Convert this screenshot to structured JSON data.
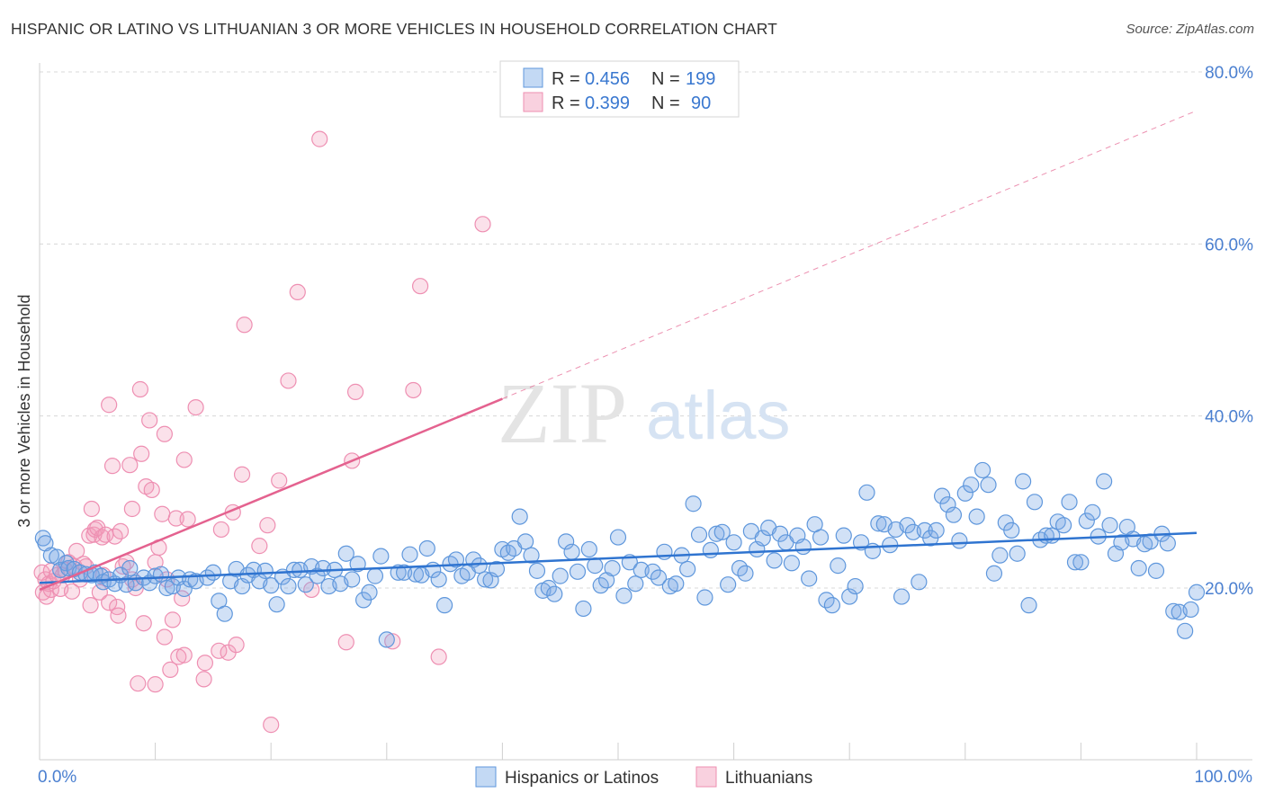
{
  "title": "HISPANIC OR LATINO VS LITHUANIAN 3 OR MORE VEHICLES IN HOUSEHOLD CORRELATION CHART",
  "source": "Source: ZipAtlas.com",
  "watermark": {
    "zip": "ZIP",
    "atlas": "atlas"
  },
  "legend_top": [
    {
      "r_label": "R =",
      "r_value": "0.456",
      "n_label": "N =",
      "n_value": "199",
      "color": "#7aaae6"
    },
    {
      "r_label": "R =",
      "r_value": "0.399",
      "n_label": "N =",
      "n_value": "90",
      "color": "#f29ab8"
    }
  ],
  "legend_bottom": [
    {
      "label": "Hispanics or Latinos",
      "color": "#7aaae6"
    },
    {
      "label": "Lithuanians",
      "color": "#f29ab8"
    }
  ],
  "colors": {
    "blue_fill": "rgba(122,170,230,0.35)",
    "blue_stroke": "#5f97dc",
    "blue_line": "#2f74d0",
    "pink_fill": "rgba(242,154,184,0.30)",
    "pink_stroke": "#ee8fb2",
    "pink_line": "#e4628f",
    "grid": "#d8d8d8",
    "tick_text": "#4a7fd0"
  },
  "chart_data": {
    "type": "scatter",
    "title": "HISPANIC OR LATINO VS LITHUANIAN 3 OR MORE VEHICLES IN HOUSEHOLD CORRELATION CHART",
    "xlabel": "",
    "ylabel": "3 or more Vehicles in Household",
    "xlim": [
      0,
      100
    ],
    "ylim": [
      0,
      85
    ],
    "x_tick_labels": [
      "0.0%",
      "100.0%"
    ],
    "y_ticks": [
      20,
      40,
      60,
      80
    ],
    "y_tick_labels": [
      "20.0%",
      "40.0%",
      "60.0%",
      "80.0%"
    ],
    "grid": true,
    "legend_placement": "top-center",
    "series": [
      {
        "name": "Hispanics or Latinos",
        "r": 0.456,
        "n": 199,
        "trend": {
          "x0": 0,
          "y0": 20.6,
          "x1": 100,
          "y1": 26.4
        },
        "points": [
          [
            0.3,
            25.8
          ],
          [
            0.5,
            25.2
          ],
          [
            1.0,
            23.8
          ],
          [
            1.5,
            23.6
          ],
          [
            1.8,
            22.1
          ],
          [
            2.3,
            22.9
          ],
          [
            2.5,
            22.3
          ],
          [
            3.0,
            22.2
          ],
          [
            3.5,
            21.8
          ],
          [
            4.0,
            21.6
          ],
          [
            4.5,
            21.5
          ],
          [
            4.8,
            21.8
          ],
          [
            5.3,
            21.4
          ],
          [
            5.5,
            20.7
          ],
          [
            6.0,
            21.0
          ],
          [
            6.5,
            20.5
          ],
          [
            7.0,
            21.5
          ],
          [
            7.5,
            20.4
          ],
          [
            7.8,
            22.3
          ],
          [
            8.3,
            20.6
          ],
          [
            9.0,
            21.2
          ],
          [
            9.5,
            20.6
          ],
          [
            10.0,
            21.4
          ],
          [
            10.5,
            21.6
          ],
          [
            11.0,
            20.0
          ],
          [
            11.5,
            20.2
          ],
          [
            12.0,
            21.2
          ],
          [
            12.5,
            19.9
          ],
          [
            13.0,
            21.0
          ],
          [
            13.5,
            20.8
          ],
          [
            14.5,
            21.2
          ],
          [
            15.0,
            21.8
          ],
          [
            15.5,
            18.5
          ],
          [
            16.0,
            17.0
          ],
          [
            16.5,
            20.8
          ],
          [
            17.0,
            22.2
          ],
          [
            17.5,
            20.2
          ],
          [
            18.0,
            21.5
          ],
          [
            18.5,
            22.1
          ],
          [
            19.0,
            20.8
          ],
          [
            19.5,
            22.0
          ],
          [
            20.0,
            20.3
          ],
          [
            20.5,
            18.1
          ],
          [
            21.0,
            21.3
          ],
          [
            21.5,
            20.2
          ],
          [
            22.0,
            22.1
          ],
          [
            22.5,
            22.1
          ],
          [
            23.0,
            20.4
          ],
          [
            23.5,
            22.5
          ],
          [
            24.0,
            21.4
          ],
          [
            24.5,
            22.3
          ],
          [
            25.0,
            20.2
          ],
          [
            25.5,
            22.1
          ],
          [
            26.0,
            20.5
          ],
          [
            26.5,
            24.0
          ],
          [
            27.0,
            21.0
          ],
          [
            27.5,
            22.8
          ],
          [
            28.0,
            18.6
          ],
          [
            28.5,
            19.5
          ],
          [
            29.0,
            21.4
          ],
          [
            29.5,
            23.7
          ],
          [
            30.0,
            14.0
          ],
          [
            31.0,
            21.8
          ],
          [
            31.5,
            21.8
          ],
          [
            32.0,
            23.9
          ],
          [
            32.5,
            21.6
          ],
          [
            33.0,
            21.5
          ],
          [
            33.5,
            24.6
          ],
          [
            34.0,
            22.1
          ],
          [
            34.5,
            21.0
          ],
          [
            35.0,
            18.0
          ],
          [
            35.5,
            22.8
          ],
          [
            36.0,
            23.3
          ],
          [
            36.5,
            21.4
          ],
          [
            37.0,
            21.8
          ],
          [
            37.5,
            23.3
          ],
          [
            38.0,
            22.6
          ],
          [
            38.5,
            21.0
          ],
          [
            39.0,
            20.9
          ],
          [
            39.5,
            22.2
          ],
          [
            40.0,
            24.5
          ],
          [
            40.5,
            24.1
          ],
          [
            41.0,
            24.6
          ],
          [
            41.5,
            28.3
          ],
          [
            42.0,
            25.4
          ],
          [
            42.5,
            23.8
          ],
          [
            43.0,
            22.0
          ],
          [
            43.5,
            19.7
          ],
          [
            44.0,
            20.0
          ],
          [
            44.5,
            19.3
          ],
          [
            45.0,
            21.4
          ],
          [
            45.5,
            25.4
          ],
          [
            46.0,
            24.2
          ],
          [
            46.5,
            21.9
          ],
          [
            47.0,
            17.6
          ],
          [
            47.5,
            24.5
          ],
          [
            48.0,
            22.6
          ],
          [
            48.5,
            20.3
          ],
          [
            49.0,
            20.9
          ],
          [
            49.5,
            22.3
          ],
          [
            50.0,
            25.9
          ],
          [
            50.5,
            19.1
          ],
          [
            51.0,
            23.0
          ],
          [
            51.5,
            20.5
          ],
          [
            52.0,
            22.1
          ],
          [
            53.0,
            21.9
          ],
          [
            53.5,
            21.2
          ],
          [
            54.0,
            24.2
          ],
          [
            54.5,
            20.2
          ],
          [
            55.0,
            20.5
          ],
          [
            55.5,
            23.8
          ],
          [
            56.0,
            22.2
          ],
          [
            56.5,
            29.8
          ],
          [
            57.0,
            26.2
          ],
          [
            57.5,
            18.9
          ],
          [
            58.0,
            24.4
          ],
          [
            58.5,
            26.3
          ],
          [
            59.0,
            26.5
          ],
          [
            59.5,
            20.4
          ],
          [
            60.0,
            25.3
          ],
          [
            60.5,
            22.3
          ],
          [
            61.0,
            21.7
          ],
          [
            61.5,
            26.6
          ],
          [
            62.0,
            24.5
          ],
          [
            62.5,
            25.8
          ],
          [
            63.0,
            27.0
          ],
          [
            63.5,
            23.2
          ],
          [
            64.0,
            26.3
          ],
          [
            64.5,
            25.3
          ],
          [
            65.0,
            22.9
          ],
          [
            65.5,
            26.1
          ],
          [
            66.0,
            24.8
          ],
          [
            66.5,
            21.1
          ],
          [
            67.0,
            27.4
          ],
          [
            67.5,
            25.9
          ],
          [
            68.0,
            18.6
          ],
          [
            68.5,
            18.0
          ],
          [
            69.0,
            22.6
          ],
          [
            69.5,
            26.1
          ],
          [
            70.0,
            19.0
          ],
          [
            70.5,
            20.2
          ],
          [
            71.0,
            25.3
          ],
          [
            71.5,
            31.1
          ],
          [
            72.0,
            24.3
          ],
          [
            72.5,
            27.5
          ],
          [
            73.0,
            27.4
          ],
          [
            73.5,
            25.0
          ],
          [
            74.0,
            26.8
          ],
          [
            74.5,
            19.0
          ],
          [
            75.0,
            27.3
          ],
          [
            75.5,
            26.5
          ],
          [
            76.0,
            20.7
          ],
          [
            76.5,
            26.7
          ],
          [
            77.0,
            25.8
          ],
          [
            77.5,
            26.7
          ],
          [
            78.0,
            30.7
          ],
          [
            78.5,
            29.7
          ],
          [
            79.0,
            28.5
          ],
          [
            79.5,
            25.5
          ],
          [
            80.0,
            31.0
          ],
          [
            80.5,
            32.0
          ],
          [
            81.0,
            28.3
          ],
          [
            81.5,
            33.7
          ],
          [
            82.0,
            32.0
          ],
          [
            82.5,
            21.7
          ],
          [
            83.0,
            23.8
          ],
          [
            83.5,
            27.6
          ],
          [
            84.0,
            26.7
          ],
          [
            84.5,
            24.0
          ],
          [
            85.0,
            32.4
          ],
          [
            85.5,
            18.0
          ],
          [
            86.0,
            30.0
          ],
          [
            86.5,
            25.6
          ],
          [
            87.0,
            26.1
          ],
          [
            87.5,
            26.1
          ],
          [
            88.0,
            27.7
          ],
          [
            88.5,
            27.3
          ],
          [
            89.0,
            30.0
          ],
          [
            89.5,
            23.0
          ],
          [
            90.0,
            23.0
          ],
          [
            90.5,
            27.8
          ],
          [
            91.0,
            28.8
          ],
          [
            91.5,
            26.0
          ],
          [
            92.0,
            32.4
          ],
          [
            92.5,
            27.3
          ],
          [
            93.0,
            24.0
          ],
          [
            93.5,
            25.3
          ],
          [
            94.0,
            27.1
          ],
          [
            94.5,
            25.7
          ],
          [
            95.0,
            22.3
          ],
          [
            95.5,
            25.1
          ],
          [
            96.0,
            25.4
          ],
          [
            96.5,
            22.0
          ],
          [
            97.0,
            26.3
          ],
          [
            97.5,
            25.2
          ],
          [
            98.0,
            17.3
          ],
          [
            98.5,
            17.2
          ],
          [
            99.0,
            15.0
          ],
          [
            99.5,
            17.5
          ],
          [
            100.0,
            19.5
          ]
        ]
      },
      {
        "name": "Lithuanians",
        "r": 0.399,
        "n": 90,
        "trend": {
          "x0": 0,
          "y0": 19.8,
          "x1": 40.0,
          "y1": 42.0,
          "dashed_to": {
            "x": 100,
            "y": 75.5
          }
        },
        "points": [
          [
            0.2,
            21.8
          ],
          [
            0.3,
            19.5
          ],
          [
            0.5,
            21.0
          ],
          [
            0.6,
            19.0
          ],
          [
            0.8,
            20.5
          ],
          [
            1.0,
            22.0
          ],
          [
            1.0,
            19.8
          ],
          [
            1.2,
            20.8
          ],
          [
            1.5,
            21.5
          ],
          [
            1.8,
            19.9
          ],
          [
            2.0,
            21.5
          ],
          [
            2.2,
            22.1
          ],
          [
            2.5,
            23.0
          ],
          [
            2.8,
            19.6
          ],
          [
            3.0,
            22.5
          ],
          [
            3.2,
            24.3
          ],
          [
            3.5,
            21.0
          ],
          [
            3.8,
            22.8
          ],
          [
            4.0,
            22.5
          ],
          [
            4.3,
            26.1
          ],
          [
            4.4,
            18.0
          ],
          [
            4.5,
            29.2
          ],
          [
            4.7,
            26.2
          ],
          [
            4.8,
            26.8
          ],
          [
            5.0,
            27.0
          ],
          [
            5.2,
            19.5
          ],
          [
            5.4,
            25.9
          ],
          [
            5.5,
            21.5
          ],
          [
            5.7,
            26.2
          ],
          [
            6.0,
            18.3
          ],
          [
            6.0,
            41.3
          ],
          [
            6.3,
            34.2
          ],
          [
            6.5,
            26.0
          ],
          [
            6.7,
            17.8
          ],
          [
            6.8,
            16.8
          ],
          [
            7.0,
            26.6
          ],
          [
            7.2,
            22.5
          ],
          [
            7.5,
            23.0
          ],
          [
            7.8,
            34.3
          ],
          [
            8.0,
            21.0
          ],
          [
            8.0,
            29.2
          ],
          [
            8.3,
            20.0
          ],
          [
            8.5,
            8.9
          ],
          [
            8.7,
            43.1
          ],
          [
            8.8,
            35.6
          ],
          [
            9.0,
            15.9
          ],
          [
            9.2,
            31.8
          ],
          [
            9.5,
            39.5
          ],
          [
            9.7,
            31.4
          ],
          [
            10.0,
            23.0
          ],
          [
            10.0,
            8.8
          ],
          [
            10.3,
            24.7
          ],
          [
            10.6,
            28.6
          ],
          [
            10.8,
            37.9
          ],
          [
            10.8,
            14.3
          ],
          [
            11.0,
            21.0
          ],
          [
            11.3,
            10.5
          ],
          [
            11.5,
            16.3
          ],
          [
            11.8,
            28.1
          ],
          [
            12.0,
            12.0
          ],
          [
            12.3,
            18.8
          ],
          [
            12.5,
            12.2
          ],
          [
            12.5,
            34.9
          ],
          [
            12.8,
            28.0
          ],
          [
            13.5,
            41.0
          ],
          [
            14.2,
            9.4
          ],
          [
            14.3,
            11.3
          ],
          [
            15.5,
            12.7
          ],
          [
            15.7,
            26.8
          ],
          [
            16.3,
            12.5
          ],
          [
            16.7,
            28.8
          ],
          [
            17.0,
            13.4
          ],
          [
            17.5,
            33.2
          ],
          [
            17.7,
            50.6
          ],
          [
            19.0,
            24.9
          ],
          [
            19.7,
            27.3
          ],
          [
            20.0,
            4.1
          ],
          [
            20.7,
            32.5
          ],
          [
            21.5,
            44.1
          ],
          [
            22.3,
            54.4
          ],
          [
            23.5,
            19.8
          ],
          [
            24.2,
            72.2
          ],
          [
            26.5,
            13.7
          ],
          [
            27.0,
            34.8
          ],
          [
            27.3,
            42.8
          ],
          [
            30.5,
            13.8
          ],
          [
            32.3,
            43.0
          ],
          [
            32.9,
            55.1
          ],
          [
            34.5,
            12.0
          ],
          [
            38.3,
            62.3
          ]
        ]
      }
    ]
  }
}
